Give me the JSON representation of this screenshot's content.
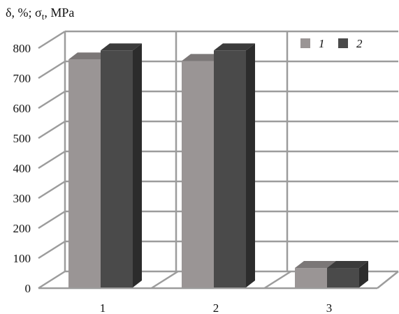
{
  "chart_data": {
    "type": "bar",
    "ylabel": "δ, %; σt, MPa",
    "ylabel_parts": {
      "pre": "δ, %; σ",
      "sub": "t",
      "post": ", MPa"
    },
    "categories": [
      "1",
      "2",
      "3"
    ],
    "series": [
      {
        "name": "1",
        "values": [
          760,
          755,
          65
        ],
        "color": "#9a9595"
      },
      {
        "name": "2",
        "values": [
          790,
          790,
          65
        ],
        "color": "#4a4a4a"
      }
    ],
    "ylim": [
      0,
      800
    ],
    "yticks": [
      0,
      100,
      200,
      300,
      400,
      500,
      600,
      700,
      800
    ],
    "grid": true,
    "legend_position": "top-right",
    "style": "3d-column"
  }
}
